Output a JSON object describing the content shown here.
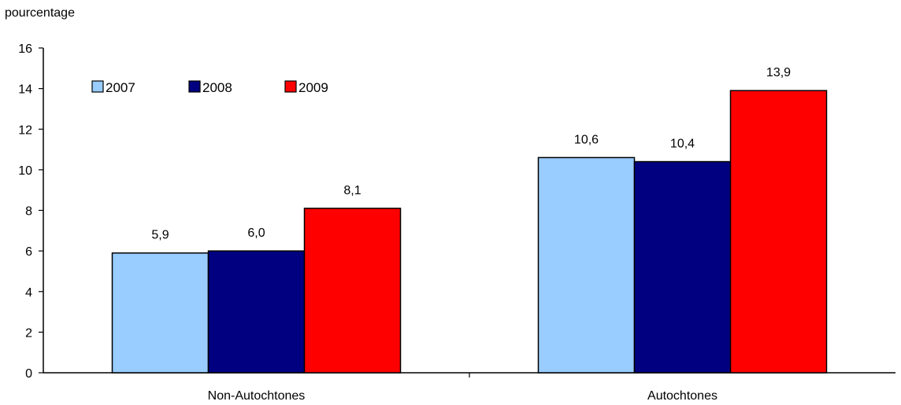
{
  "chart_data": {
    "type": "bar",
    "ylabel": "pourcentage",
    "xlabel": "",
    "title": "",
    "categories": [
      "Non-Autochtones",
      "Autochtones"
    ],
    "series": [
      {
        "name": "2007",
        "values": [
          5.9,
          10.6
        ],
        "color": "#99ccff"
      },
      {
        "name": "2008",
        "values": [
          6.0,
          10.4
        ],
        "color": "#000080"
      },
      {
        "name": "2009",
        "values": [
          8.1,
          13.9
        ],
        "color": "#ff0000"
      }
    ],
    "data_labels": [
      [
        "5,9",
        "10,6"
      ],
      [
        "6,0",
        "10,4"
      ],
      [
        "8,1",
        "13,9"
      ]
    ],
    "ylim": [
      0,
      16
    ],
    "yticks": [
      0,
      2,
      4,
      6,
      8,
      10,
      12,
      14,
      16
    ],
    "grid": false,
    "legend_position": "top-left"
  }
}
